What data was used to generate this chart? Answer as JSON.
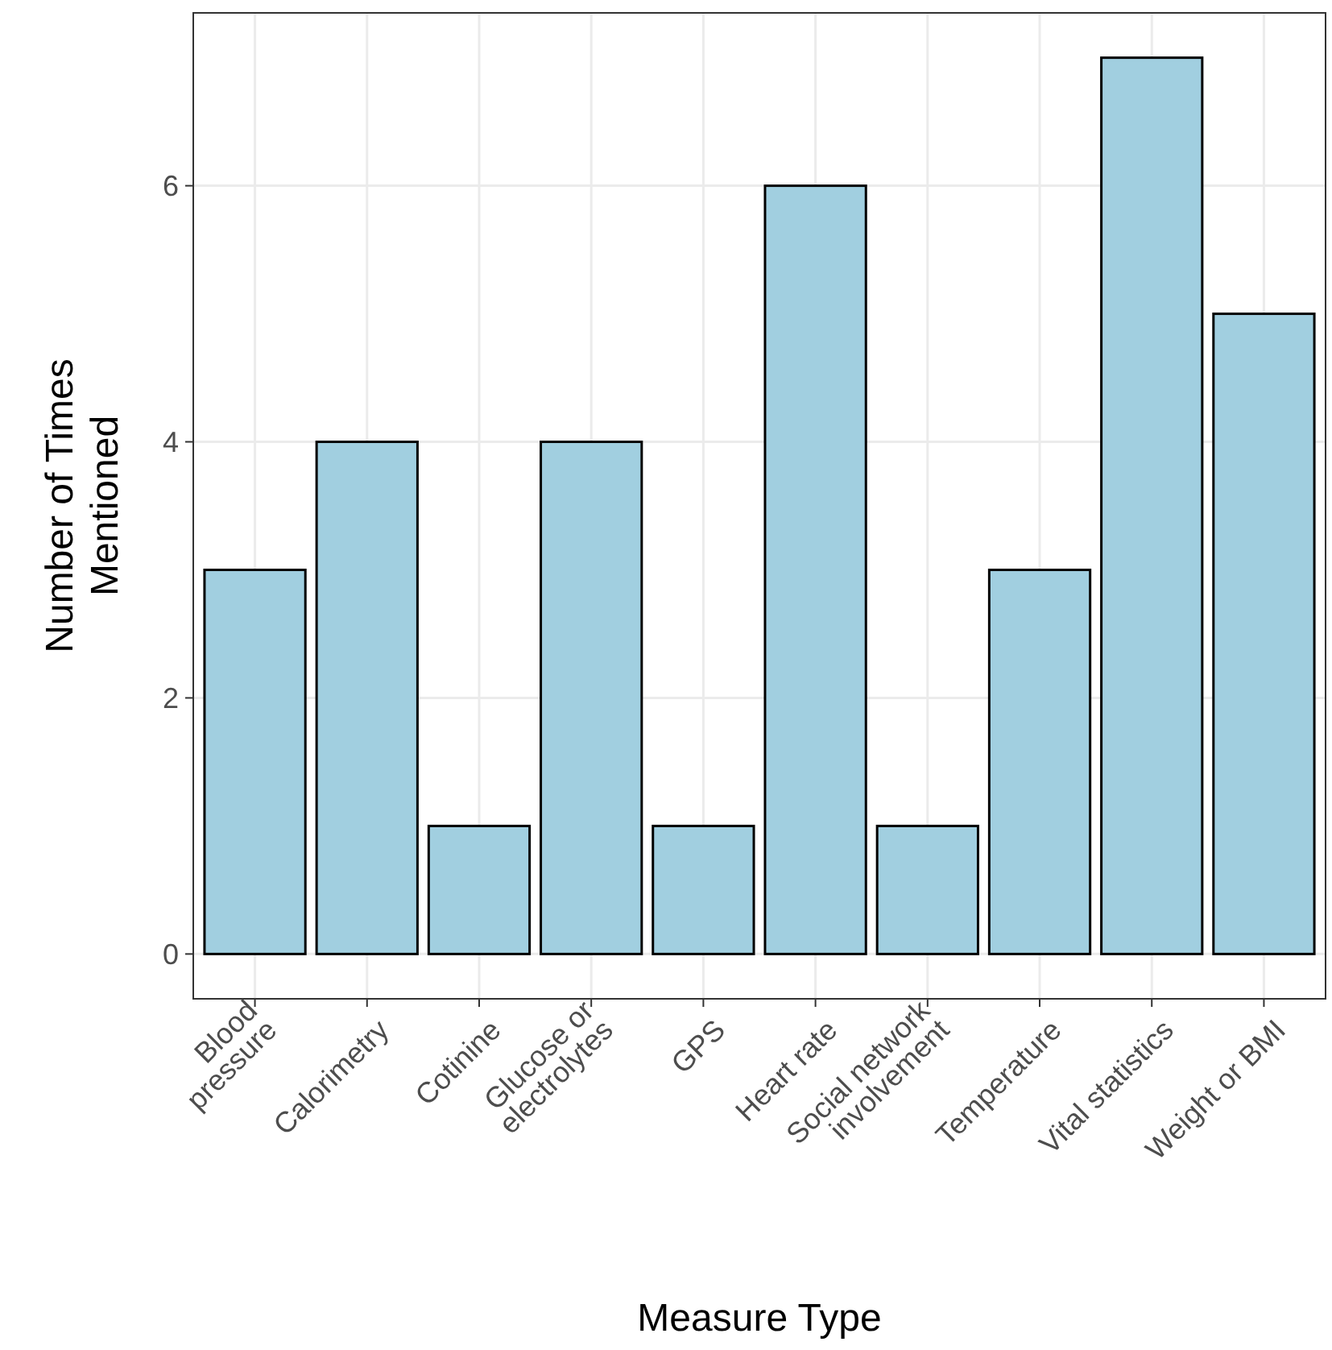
{
  "chart_data": {
    "type": "bar",
    "xlabel": "Measure Type",
    "ylabel": "Number of Times\nMentioned",
    "categories": [
      "Blood\npressure",
      "Calorimetry",
      "Cotinine",
      "Glucose or\nelectrolytes",
      "GPS",
      "Heart rate",
      "Social network\ninvolvement",
      "Temperature",
      "Vital statistics",
      "Weight or BMI"
    ],
    "values": [
      3,
      4,
      1,
      4,
      1,
      6,
      1,
      3,
      7,
      5
    ],
    "color": "#a1cfe0",
    "ylim": [
      -0.35,
      7.35
    ],
    "yticks": [
      0,
      2,
      4,
      6
    ],
    "grid": true
  }
}
